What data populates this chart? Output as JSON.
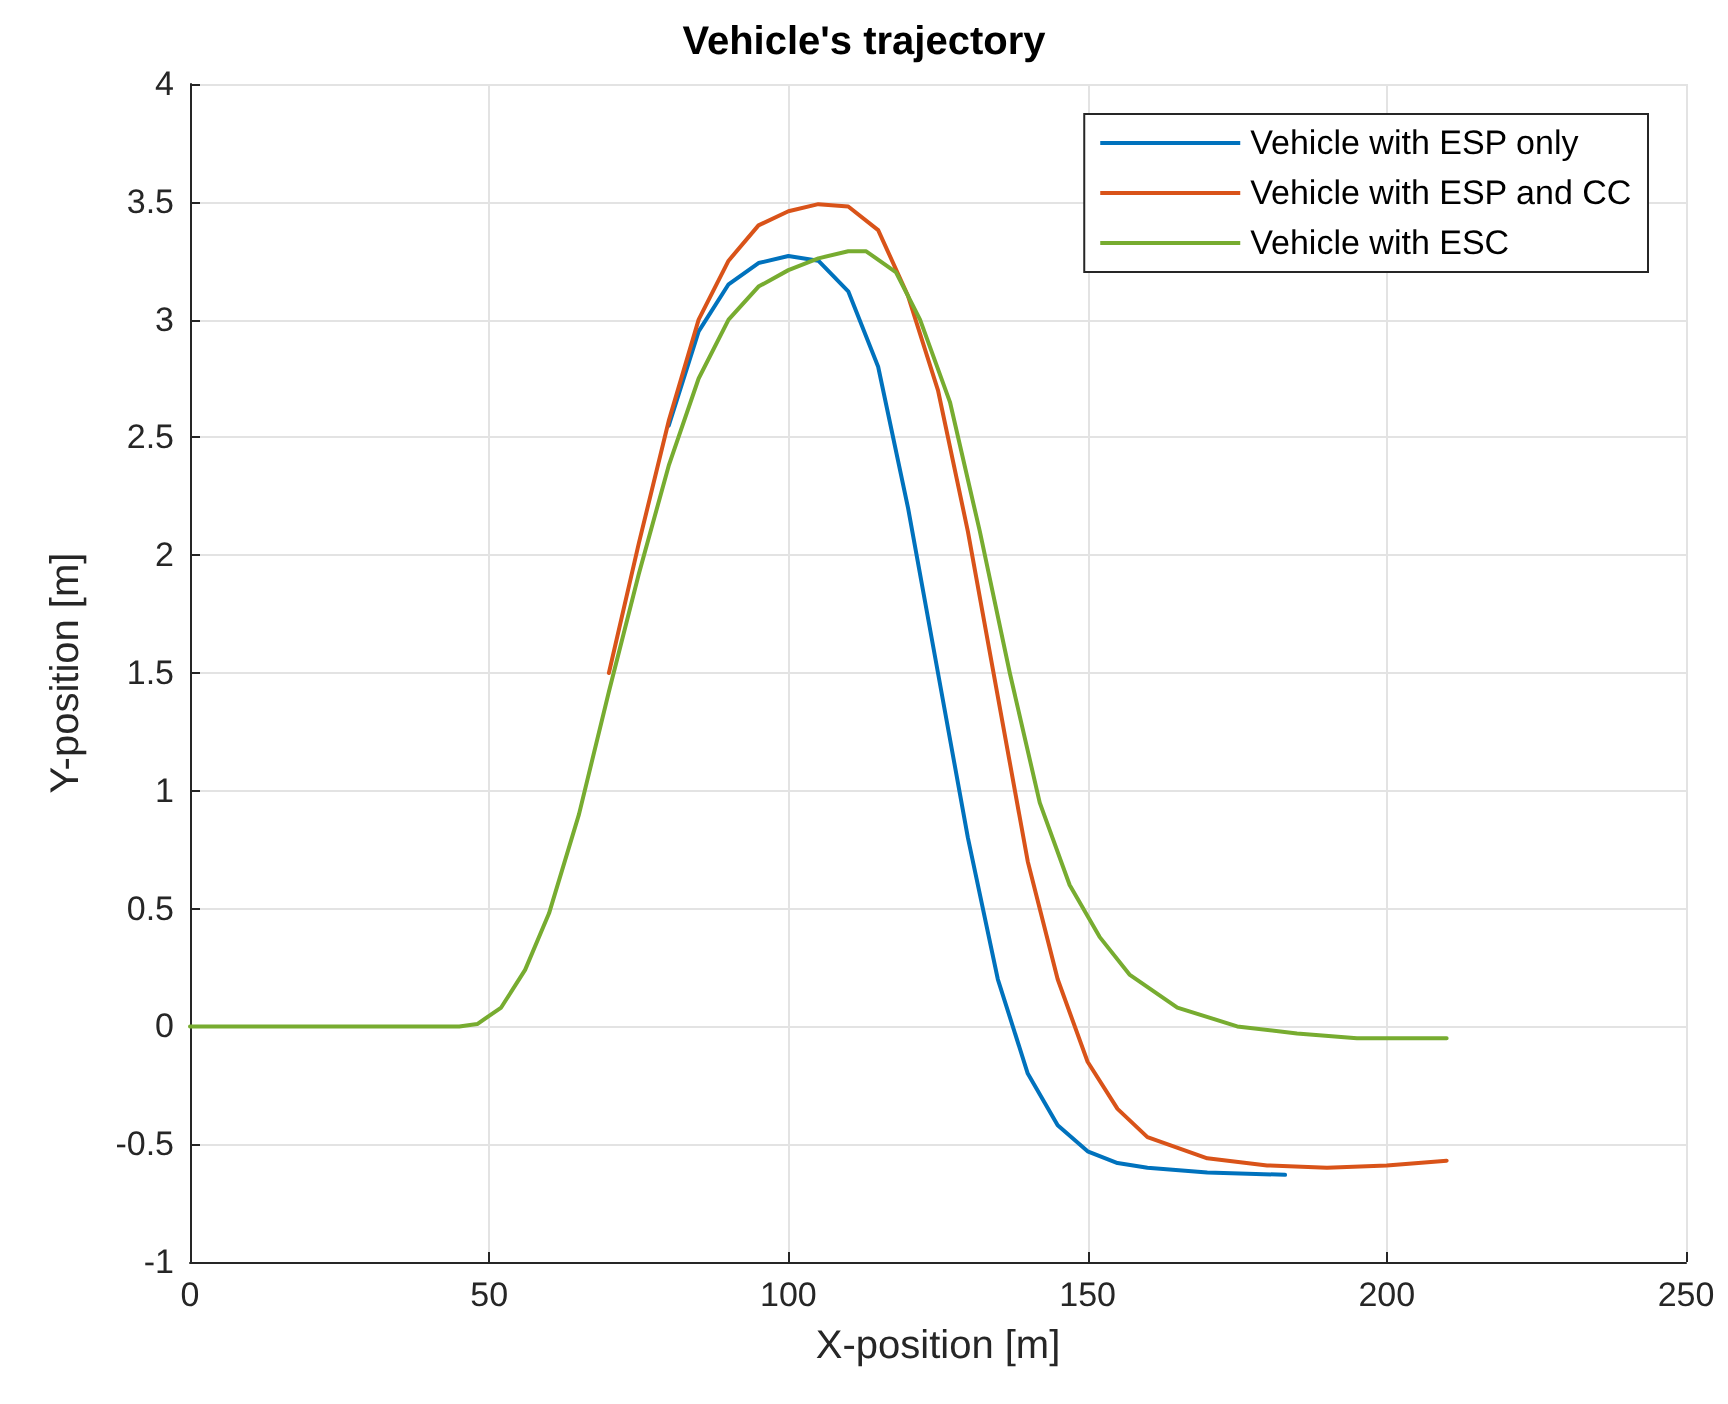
{
  "chart_data": {
    "type": "line",
    "title": "Vehicle's trajectory",
    "xlabel": "X-position [m]",
    "ylabel": "Y-position [m]",
    "xlim": [
      0,
      250
    ],
    "xticks": [
      0,
      50,
      100,
      150,
      200,
      250
    ],
    "ylim": [
      -1,
      4
    ],
    "yticks": [
      -1,
      -0.5,
      0,
      0.5,
      1,
      1.5,
      2,
      2.5,
      3,
      3.5,
      4
    ],
    "grid": true,
    "legend": "top right",
    "marker": "none",
    "line_style": "solid",
    "series": [
      {
        "name": "Vehicle with ESP only",
        "color": "#0072bd",
        "x": [
          80,
          85,
          90,
          95,
          100,
          105,
          110,
          115,
          120,
          125,
          130,
          135,
          140,
          145,
          150,
          155,
          160,
          170,
          183
        ],
        "values": [
          2.55,
          2.95,
          3.15,
          3.24,
          3.27,
          3.25,
          3.12,
          2.8,
          2.2,
          1.5,
          0.8,
          0.2,
          -0.2,
          -0.42,
          -0.53,
          -0.58,
          -0.6,
          -0.62,
          -0.63
        ]
      },
      {
        "name": "Vehicle with ESP and CC",
        "color": "#d95319",
        "x": [
          70,
          75,
          80,
          85,
          90,
          95,
          100,
          105,
          110,
          115,
          120,
          125,
          130,
          135,
          140,
          145,
          150,
          155,
          160,
          170,
          180,
          190,
          200,
          210
        ],
        "values": [
          1.5,
          2.05,
          2.57,
          3.0,
          3.25,
          3.4,
          3.46,
          3.49,
          3.48,
          3.38,
          3.1,
          2.7,
          2.1,
          1.4,
          0.7,
          0.2,
          -0.15,
          -0.35,
          -0.47,
          -0.56,
          -0.59,
          -0.6,
          -0.59,
          -0.57
        ]
      },
      {
        "name": "Vehicle with ESC",
        "color": "#77ac30",
        "x": [
          0,
          45,
          48,
          52,
          56,
          60,
          65,
          70,
          75,
          80,
          85,
          90,
          95,
          100,
          105,
          110,
          113,
          118,
          122,
          127,
          132,
          137,
          142,
          147,
          152,
          157,
          165,
          175,
          185,
          195,
          210
        ],
        "values": [
          0,
          0,
          0.01,
          0.08,
          0.24,
          0.48,
          0.9,
          1.42,
          1.92,
          2.38,
          2.75,
          3.0,
          3.14,
          3.21,
          3.26,
          3.29,
          3.29,
          3.2,
          3.0,
          2.65,
          2.1,
          1.5,
          0.95,
          0.6,
          0.38,
          0.22,
          0.08,
          0,
          -0.03,
          -0.05,
          -0.05
        ]
      }
    ]
  }
}
